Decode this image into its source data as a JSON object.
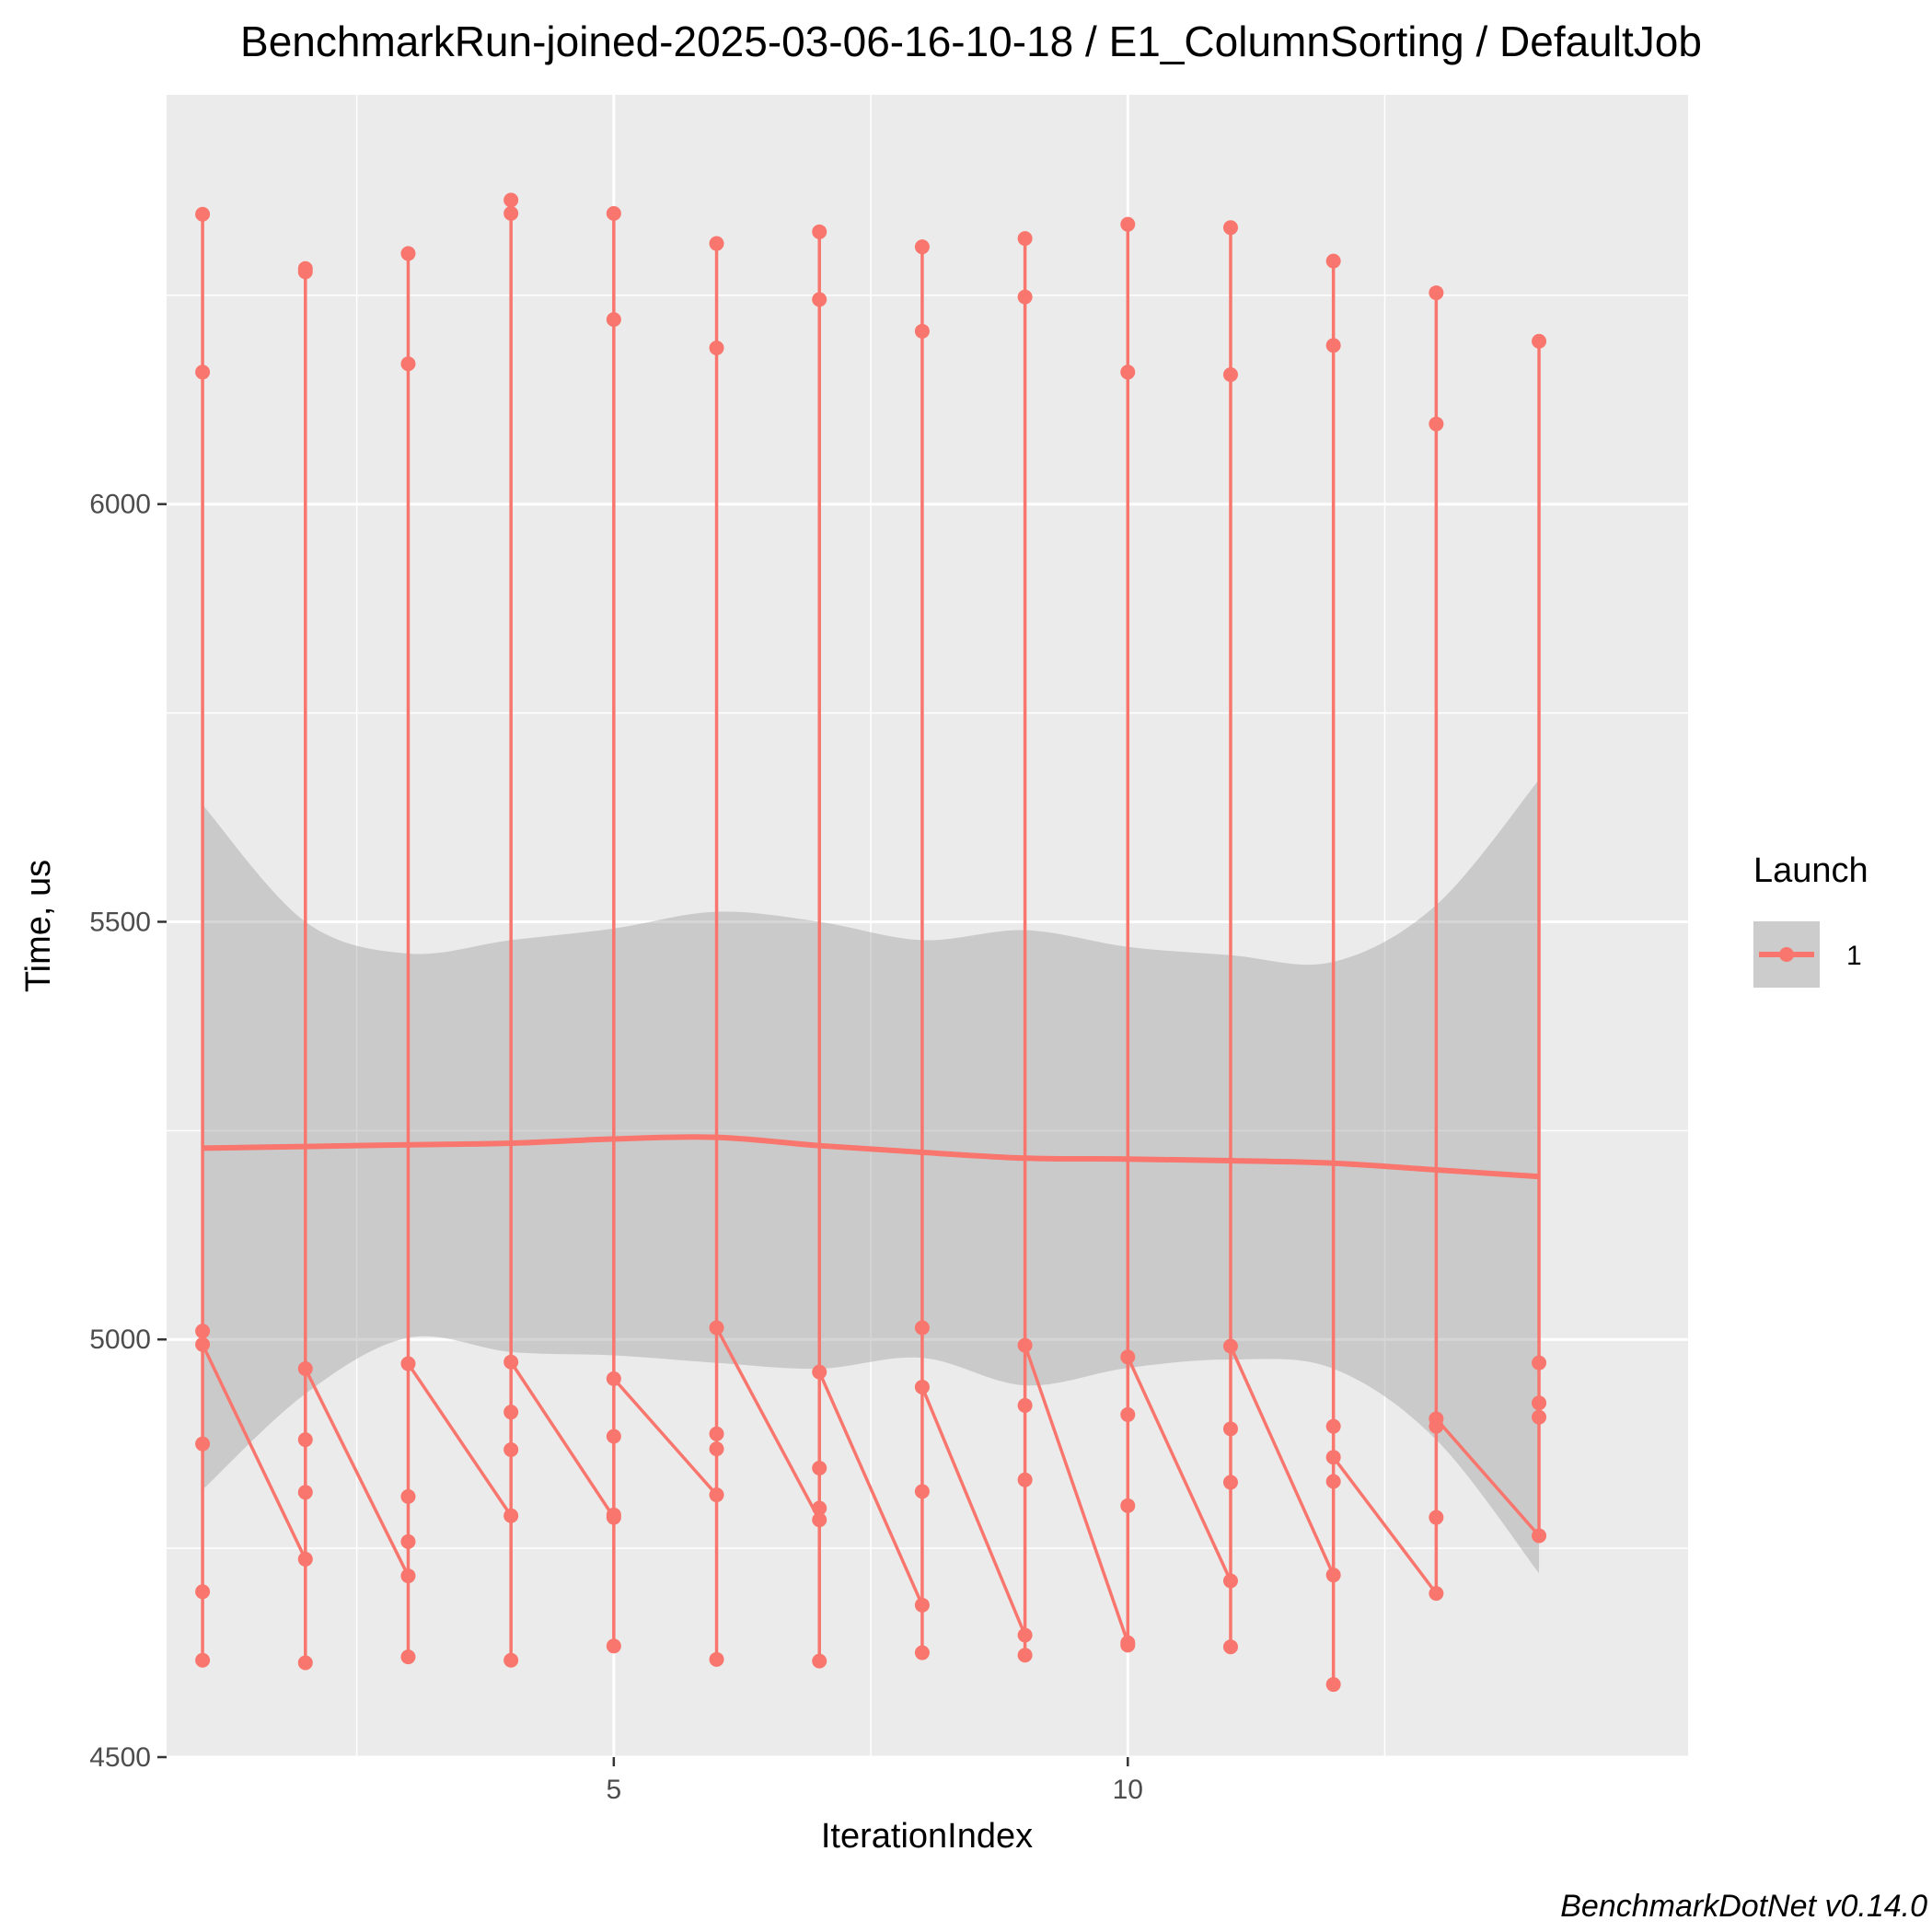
{
  "chart_data": {
    "type": "line",
    "title": "BenchmarkRun-joined-2025-03-06-16-10-18 / E1_ColumnSorting / DefaultJob",
    "xlabel": "IterationIndex",
    "ylabel": "Time, us",
    "caption": "BenchmarkDotNet v0.14.0",
    "xlim": [
      0.65,
      15.45
    ],
    "ylim": [
      4500,
      6490
    ],
    "x_ticks": [
      5,
      10
    ],
    "x_tick_labels": [
      "5",
      "10"
    ],
    "y_ticks": [
      4500,
      5000,
      5500,
      6000
    ],
    "y_tick_labels": [
      "4500",
      "5000",
      "5500",
      "6000"
    ],
    "grid": true,
    "legend": {
      "title": "Launch",
      "position": "right",
      "entries": [
        "1"
      ]
    },
    "colors": {
      "series": "#f8766d",
      "panel": "#ebebeb",
      "ribbon": "#999999",
      "grid": "#ffffff"
    },
    "series": [
      {
        "name": "1",
        "points": [
          {
            "x": 1,
            "y": 6347
          },
          {
            "x": 1,
            "y": 6158
          },
          {
            "x": 1,
            "y": 5010
          },
          {
            "x": 1,
            "y": 4994
          },
          {
            "x": 1,
            "y": 4875
          },
          {
            "x": 1,
            "y": 4698
          },
          {
            "x": 1,
            "y": 4616
          },
          {
            "x": 2,
            "y": 6282
          },
          {
            "x": 2,
            "y": 6278
          },
          {
            "x": 2,
            "y": 4965
          },
          {
            "x": 2,
            "y": 4880
          },
          {
            "x": 2,
            "y": 4817
          },
          {
            "x": 2,
            "y": 4737
          },
          {
            "x": 2,
            "y": 4613
          },
          {
            "x": 3,
            "y": 6300
          },
          {
            "x": 3,
            "y": 6168
          },
          {
            "x": 3,
            "y": 4971
          },
          {
            "x": 3,
            "y": 4812
          },
          {
            "x": 3,
            "y": 4758
          },
          {
            "x": 3,
            "y": 4717
          },
          {
            "x": 3,
            "y": 4620
          },
          {
            "x": 4,
            "y": 6364
          },
          {
            "x": 4,
            "y": 6348
          },
          {
            "x": 4,
            "y": 4973
          },
          {
            "x": 4,
            "y": 4913
          },
          {
            "x": 4,
            "y": 4868
          },
          {
            "x": 4,
            "y": 4789
          },
          {
            "x": 4,
            "y": 4616
          },
          {
            "x": 5,
            "y": 6348
          },
          {
            "x": 5,
            "y": 6221
          },
          {
            "x": 5,
            "y": 4953
          },
          {
            "x": 5,
            "y": 4884
          },
          {
            "x": 5,
            "y": 4790
          },
          {
            "x": 5,
            "y": 4787
          },
          {
            "x": 5,
            "y": 4633
          },
          {
            "x": 6,
            "y": 6312
          },
          {
            "x": 6,
            "y": 6187
          },
          {
            "x": 6,
            "y": 5014
          },
          {
            "x": 6,
            "y": 4887
          },
          {
            "x": 6,
            "y": 4869
          },
          {
            "x": 6,
            "y": 4814
          },
          {
            "x": 6,
            "y": 4617
          },
          {
            "x": 7,
            "y": 6326
          },
          {
            "x": 7,
            "y": 6245
          },
          {
            "x": 7,
            "y": 4961
          },
          {
            "x": 7,
            "y": 4846
          },
          {
            "x": 7,
            "y": 4798
          },
          {
            "x": 7,
            "y": 4784
          },
          {
            "x": 7,
            "y": 4615
          },
          {
            "x": 8,
            "y": 6308
          },
          {
            "x": 8,
            "y": 6207
          },
          {
            "x": 8,
            "y": 5014
          },
          {
            "x": 8,
            "y": 4943
          },
          {
            "x": 8,
            "y": 4818
          },
          {
            "x": 8,
            "y": 4682
          },
          {
            "x": 8,
            "y": 4625
          },
          {
            "x": 9,
            "y": 6318
          },
          {
            "x": 9,
            "y": 6248
          },
          {
            "x": 9,
            "y": 4993
          },
          {
            "x": 9,
            "y": 4921
          },
          {
            "x": 9,
            "y": 4832
          },
          {
            "x": 9,
            "y": 4646
          },
          {
            "x": 9,
            "y": 4622
          },
          {
            "x": 10,
            "y": 6335
          },
          {
            "x": 10,
            "y": 6158
          },
          {
            "x": 10,
            "y": 4979
          },
          {
            "x": 10,
            "y": 4910
          },
          {
            "x": 10,
            "y": 4801
          },
          {
            "x": 10,
            "y": 4637
          },
          {
            "x": 10,
            "y": 4634
          },
          {
            "x": 11,
            "y": 6331
          },
          {
            "x": 11,
            "y": 6155
          },
          {
            "x": 11,
            "y": 4992
          },
          {
            "x": 11,
            "y": 4893
          },
          {
            "x": 11,
            "y": 4829
          },
          {
            "x": 11,
            "y": 4711
          },
          {
            "x": 11,
            "y": 4632
          },
          {
            "x": 12,
            "y": 6291
          },
          {
            "x": 12,
            "y": 6190
          },
          {
            "x": 12,
            "y": 4896
          },
          {
            "x": 12,
            "y": 4859
          },
          {
            "x": 12,
            "y": 4830
          },
          {
            "x": 12,
            "y": 4718
          },
          {
            "x": 12,
            "y": 4587
          },
          {
            "x": 13,
            "y": 6253
          },
          {
            "x": 13,
            "y": 6096
          },
          {
            "x": 13,
            "y": 4905
          },
          {
            "x": 13,
            "y": 4896
          },
          {
            "x": 13,
            "y": 4787
          },
          {
            "x": 13,
            "y": 4696
          },
          {
            "x": 14,
            "y": 6195
          },
          {
            "x": 14,
            "y": 4972
          },
          {
            "x": 14,
            "y": 4924
          },
          {
            "x": 14,
            "y": 4907
          },
          {
            "x": 14,
            "y": 4765
          }
        ],
        "vertical_ranges": [
          {
            "x": 1,
            "low": 4616,
            "high": 6347
          },
          {
            "x": 2,
            "low": 4613,
            "high": 6282
          },
          {
            "x": 3,
            "low": 4620,
            "high": 6300
          },
          {
            "x": 4,
            "low": 4616,
            "high": 6364
          },
          {
            "x": 5,
            "low": 4633,
            "high": 6348
          },
          {
            "x": 6,
            "low": 4617,
            "high": 6312
          },
          {
            "x": 7,
            "low": 4615,
            "high": 6326
          },
          {
            "x": 8,
            "low": 4625,
            "high": 6308
          },
          {
            "x": 9,
            "low": 4622,
            "high": 6318
          },
          {
            "x": 10,
            "low": 4634,
            "high": 6335
          },
          {
            "x": 11,
            "low": 4632,
            "high": 6331
          },
          {
            "x": 12,
            "low": 4587,
            "high": 6291
          },
          {
            "x": 13,
            "low": 4696,
            "high": 6253
          },
          {
            "x": 14,
            "low": 4765,
            "high": 6195
          }
        ],
        "connecting_segments": [
          [
            {
              "x": 1,
              "y": 4994
            },
            {
              "x": 2,
              "y": 4737
            }
          ],
          [
            {
              "x": 2,
              "y": 4965
            },
            {
              "x": 3,
              "y": 4717
            }
          ],
          [
            {
              "x": 3,
              "y": 4971
            },
            {
              "x": 4,
              "y": 4789
            }
          ],
          [
            {
              "x": 4,
              "y": 4973
            },
            {
              "x": 5,
              "y": 4787
            }
          ],
          [
            {
              "x": 5,
              "y": 4953
            },
            {
              "x": 6,
              "y": 4814
            }
          ],
          [
            {
              "x": 6,
              "y": 5014
            },
            {
              "x": 7,
              "y": 4784
            }
          ],
          [
            {
              "x": 7,
              "y": 4961
            },
            {
              "x": 8,
              "y": 4682
            }
          ],
          [
            {
              "x": 8,
              "y": 4943
            },
            {
              "x": 9,
              "y": 4646
            }
          ],
          [
            {
              "x": 9,
              "y": 4993
            },
            {
              "x": 10,
              "y": 4637
            }
          ],
          [
            {
              "x": 10,
              "y": 4979
            },
            {
              "x": 11,
              "y": 4711
            }
          ],
          [
            {
              "x": 11,
              "y": 4992
            },
            {
              "x": 12,
              "y": 4718
            }
          ],
          [
            {
              "x": 12,
              "y": 4859
            },
            {
              "x": 13,
              "y": 4696
            }
          ],
          [
            {
              "x": 13,
              "y": 4905
            },
            {
              "x": 14,
              "y": 4765
            }
          ]
        ]
      }
    ],
    "smooth": {
      "x": [
        1,
        2,
        3,
        4,
        5,
        6,
        7,
        8,
        9,
        10,
        11,
        12,
        13,
        14
      ],
      "y": [
        5229,
        5231,
        5233,
        5235,
        5240,
        5242,
        5232,
        5224,
        5217,
        5216,
        5214,
        5211,
        5203,
        5195
      ],
      "lower": [
        4820,
        4935,
        5002,
        4985,
        4981,
        4972,
        4965,
        4978,
        4945,
        4966,
        4976,
        4965,
        4880,
        4720
      ],
      "upper": [
        5640,
        5500,
        5462,
        5478,
        5492,
        5512,
        5500,
        5478,
        5490,
        5470,
        5460,
        5452,
        5520,
        5670
      ]
    }
  }
}
